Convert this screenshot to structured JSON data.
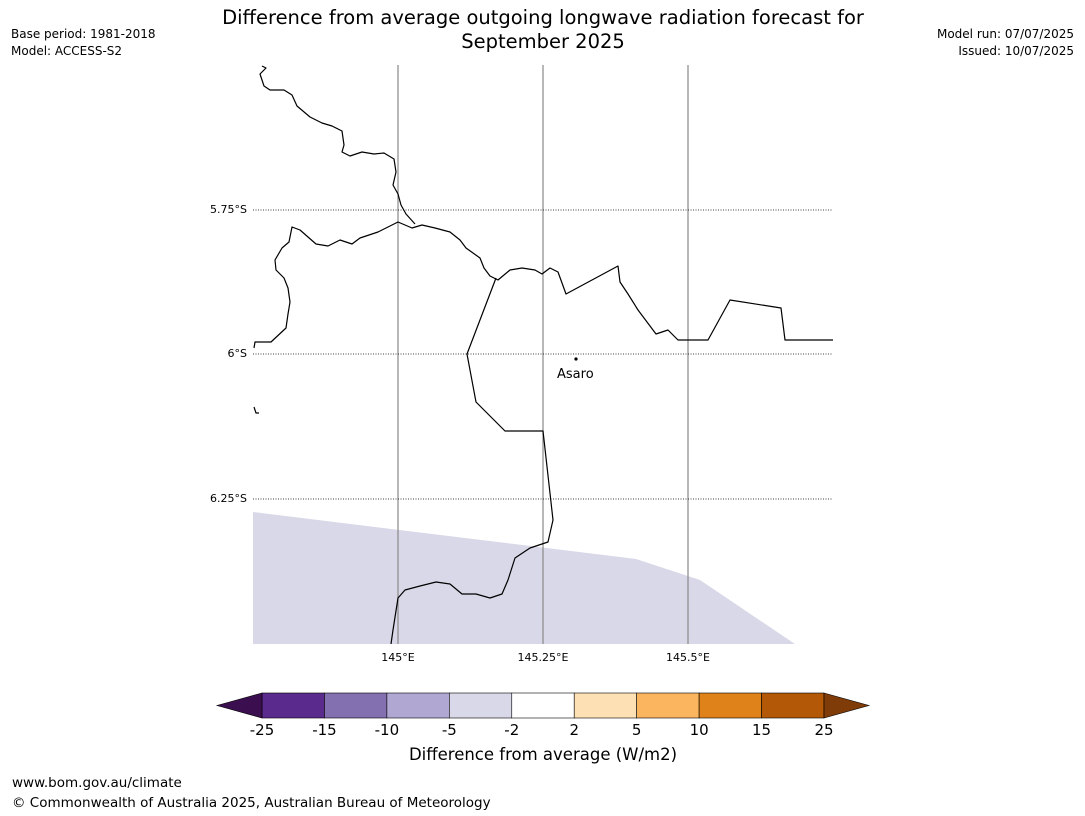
{
  "header": {
    "title_line1": "Difference from average outgoing longwave radiation forecast for",
    "title_line2": "September 2025",
    "base_period": "Base period: 1981-2018",
    "model": "Model: ACCESS-S2",
    "model_run": "Model run: 07/07/2025",
    "issued": "Issued: 10/07/2025"
  },
  "map": {
    "lat_labels": [
      "5.75°S",
      "6°S",
      "6.25°S"
    ],
    "lon_labels": [
      "145°E",
      "145.25°E",
      "145.5°E"
    ],
    "place_label": "Asaro",
    "shaded_category": "-5 to -2",
    "shaded_color": "#d8d8e8"
  },
  "colorbar": {
    "title": "Difference from average (W/m2)",
    "tick_labels": [
      "-25",
      "-15",
      "-10",
      "-5",
      "-2",
      "2",
      "5",
      "10",
      "15",
      "25"
    ],
    "colors": [
      "#5a2a8c",
      "#8370b0",
      "#b0a8d2",
      "#d8d8e8",
      "#ffffff",
      "#fde0b3",
      "#fbb55e",
      "#e0821a",
      "#b35806"
    ],
    "under_color": "#3b0f4f",
    "over_color": "#7f3b08"
  },
  "footer": {
    "url": "www.bom.gov.au/climate",
    "copyright": "© Commonwealth of Australia 2025, Australian Bureau of Meteorology"
  }
}
